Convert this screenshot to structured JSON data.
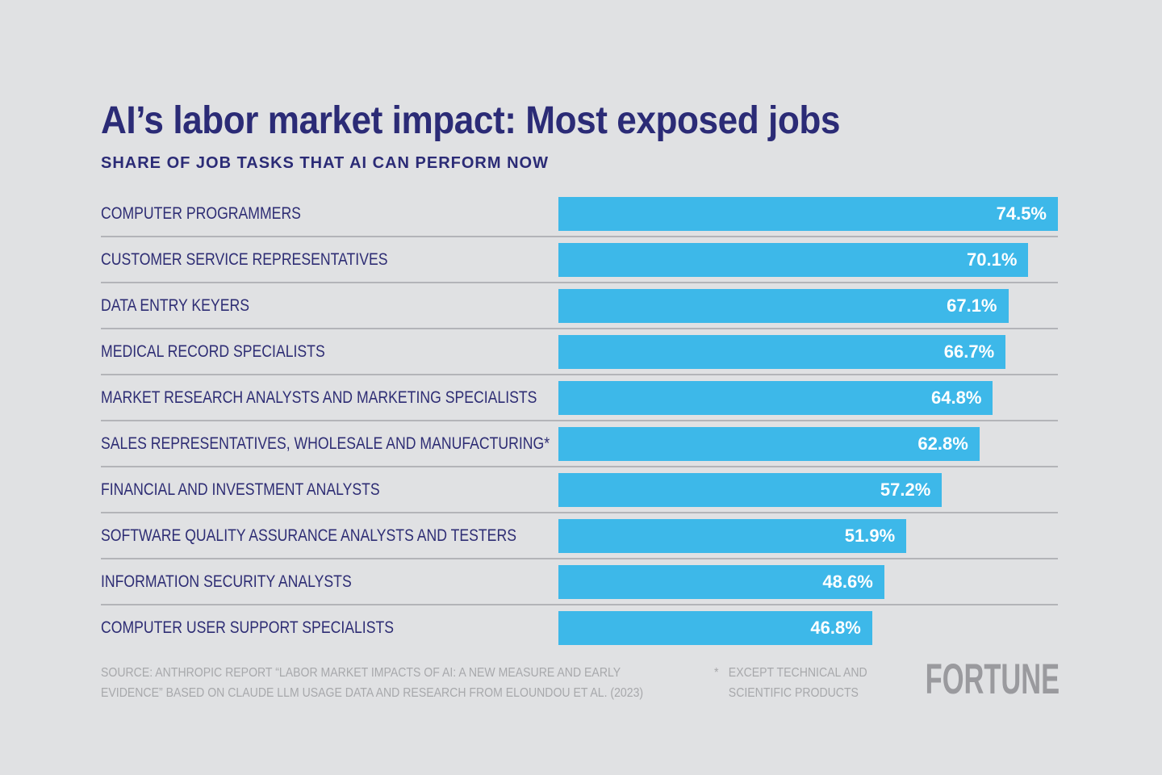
{
  "colors": {
    "background": "#e0e1e3",
    "bar": "#3db8e9",
    "title_navy": "#2b2b76",
    "category_label_navy": "#2e2d74",
    "value_label_white": "#ffffff",
    "divider_gray": "#b3b4b8",
    "source_gray": "#a7a8ab",
    "brand_gray": "#9a9a9e"
  },
  "header": {
    "title": "AI’s labor market impact: Most exposed jobs",
    "subtitle": "SHARE OF JOB TASKS THAT AI CAN PERFORM NOW"
  },
  "chart_data": {
    "type": "bar",
    "orientation": "horizontal",
    "title": "AI’s labor market impact: Most exposed jobs",
    "subtitle": "SHARE OF JOB TASKS THAT AI CAN PERFORM NOW",
    "xlabel": "",
    "ylabel": "",
    "xlim": [
      0,
      74.5
    ],
    "grid": false,
    "legend": false,
    "value_suffix": "%",
    "categories": [
      "COMPUTER PROGRAMMERS",
      "CUSTOMER SERVICE REPRESENTATIVES",
      "DATA ENTRY KEYERS",
      "MEDICAL RECORD SPECIALISTS",
      "MARKET RESEARCH ANALYSTS AND MARKETING SPECIALISTS",
      "SALES REPRESENTATIVES, WHOLESALE AND MANUFACTURING*",
      "FINANCIAL AND INVESTMENT ANALYSTS",
      "SOFTWARE QUALITY ASSURANCE ANALYSTS AND TESTERS",
      "INFORMATION SECURITY ANALYSTS",
      "COMPUTER USER SUPPORT SPECIALISTS"
    ],
    "values": [
      74.5,
      70.1,
      67.1,
      66.7,
      64.8,
      62.8,
      57.2,
      51.9,
      48.6,
      46.8
    ]
  },
  "footer": {
    "source_line1": "SOURCE: ANTHROPIC REPORT “LABOR MARKET IMPACTS OF AI: A NEW MEASURE AND EARLY",
    "source_line2": "EVIDENCE” BASED ON CLAUDE LLM USAGE DATA AND RESEARCH FROM ELOUNDOU ET AL. (2023)",
    "footnote_marker": "*",
    "footnote_line1": "EXCEPT TECHNICAL AND",
    "footnote_line2": "SCIENTIFIC PRODUCTS",
    "brand": "FORTUNE"
  }
}
